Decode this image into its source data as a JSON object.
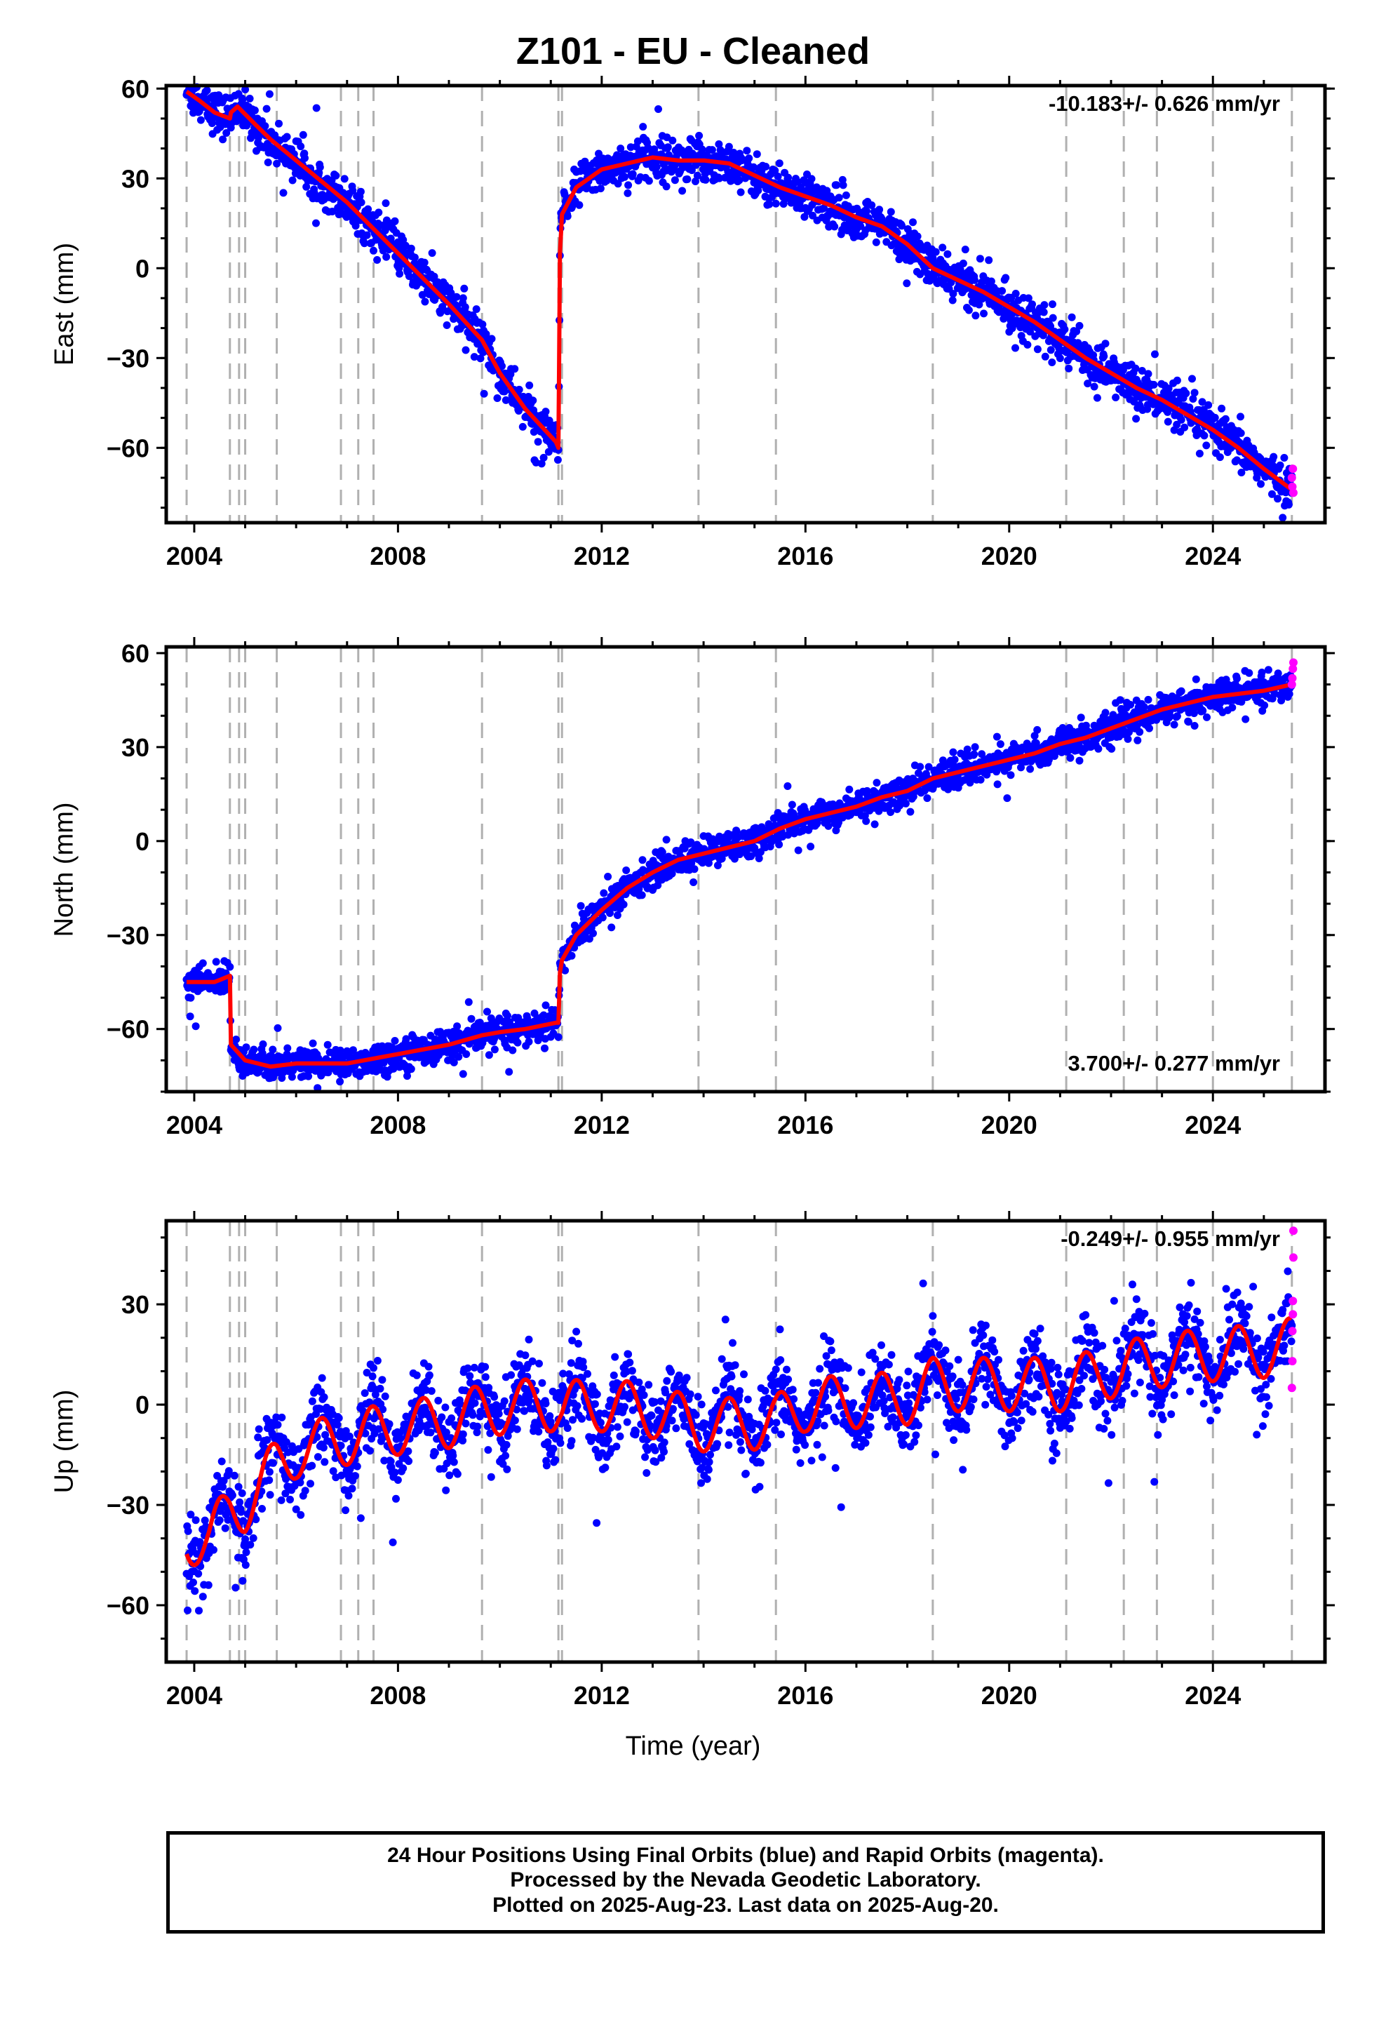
{
  "title": "Z101  - EU - Cleaned",
  "xlabel": "Time (year)",
  "footer": [
    "24 Hour Positions Using Final Orbits (blue) and Rapid Orbits (magenta).",
    "Processed by the Nevada Geodetic Laboratory.",
    "Plotted on 2025-Aug-23. Last data on 2025-Aug-20."
  ],
  "colors": {
    "final_orbits": "#0000ff",
    "rapid_orbits": "#ff00ff",
    "model": "#ff0000",
    "equipment_changes": "#b0b0b0"
  },
  "chart_data": [
    {
      "type": "scatter",
      "ylabel": "East (mm)",
      "rate_label": "-10.183+/- 0.626 mm/yr",
      "rate_position": "top-right",
      "xlim": [
        2003.45,
        2026.2
      ],
      "ylim": [
        -85,
        61
      ],
      "xticks": [
        2004,
        2008,
        2012,
        2016,
        2020,
        2024
      ],
      "xtick_labels": [
        "2004",
        "2008",
        "2012",
        "2016",
        "2020",
        "2024"
      ],
      "yticks": [
        -60,
        -30,
        0,
        30,
        60
      ],
      "ytick_labels": [
        "−60",
        "−30",
        "0",
        "30",
        "60"
      ],
      "equipment_change_years": [
        2003.85,
        2004.7,
        2004.88,
        2005.0,
        2005.62,
        2006.88,
        2007.22,
        2007.52,
        2009.65,
        2011.15,
        2011.22,
        2013.9,
        2015.42,
        2018.5,
        2021.12,
        2022.25,
        2022.9,
        2024.0,
        2025.55
      ],
      "model_trend": [
        [
          2003.85,
          59
        ],
        [
          2004.1,
          56
        ],
        [
          2004.4,
          52
        ],
        [
          2004.7,
          50
        ],
        [
          2004.72,
          52
        ],
        [
          2004.85,
          54
        ],
        [
          2005.2,
          48
        ],
        [
          2005.5,
          43
        ],
        [
          2006,
          36
        ],
        [
          2007,
          22
        ],
        [
          2008,
          5
        ],
        [
          2009,
          -12
        ],
        [
          2009.65,
          -24
        ],
        [
          2010,
          -35
        ],
        [
          2010.5,
          -47
        ],
        [
          2011.1,
          -58
        ],
        [
          2011.15,
          -60
        ],
        [
          2011.18,
          5
        ],
        [
          2011.22,
          18
        ],
        [
          2011.5,
          27
        ],
        [
          2012,
          33
        ],
        [
          2012.5,
          35
        ],
        [
          2013,
          37
        ],
        [
          2013.5,
          36
        ],
        [
          2014,
          36
        ],
        [
          2014.5,
          35
        ],
        [
          2015,
          31
        ],
        [
          2015.5,
          27
        ],
        [
          2016,
          24
        ],
        [
          2016.5,
          21
        ],
        [
          2017,
          17
        ],
        [
          2017.5,
          14
        ],
        [
          2018,
          8
        ],
        [
          2018.5,
          0
        ],
        [
          2019,
          -4
        ],
        [
          2019.5,
          -8
        ],
        [
          2020,
          -13
        ],
        [
          2020.5,
          -18
        ],
        [
          2021,
          -24
        ],
        [
          2021.5,
          -30
        ],
        [
          2022,
          -35
        ],
        [
          2022.5,
          -40
        ],
        [
          2023,
          -44
        ],
        [
          2023.5,
          -49
        ],
        [
          2024,
          -54
        ],
        [
          2024.5,
          -60
        ],
        [
          2025,
          -67
        ],
        [
          2025.55,
          -74
        ]
      ],
      "scatter_noise_mm": 3.5,
      "rapid_points": [
        [
          2025.55,
          -70
        ],
        [
          2025.56,
          -73
        ],
        [
          2025.57,
          -67
        ],
        [
          2025.58,
          -75
        ]
      ]
    },
    {
      "type": "scatter",
      "ylabel": "North (mm)",
      "rate_label": "3.700+/- 0.277 mm/yr",
      "rate_position": "bottom-right",
      "xlim": [
        2003.45,
        2026.2
      ],
      "ylim": [
        -80,
        62
      ],
      "xticks": [
        2004,
        2008,
        2012,
        2016,
        2020,
        2024
      ],
      "xtick_labels": [
        "2004",
        "2008",
        "2012",
        "2016",
        "2020",
        "2024"
      ],
      "yticks": [
        -60,
        -30,
        0,
        30,
        60
      ],
      "ytick_labels": [
        "−60",
        "−30",
        "0",
        "30",
        "60"
      ],
      "equipment_change_years": [
        2003.85,
        2004.7,
        2004.88,
        2005.0,
        2005.62,
        2006.88,
        2007.22,
        2007.52,
        2009.65,
        2011.15,
        2011.22,
        2013.9,
        2015.42,
        2018.5,
        2021.12,
        2022.25,
        2022.9,
        2024.0,
        2025.55
      ],
      "model_trend": [
        [
          2003.85,
          -45
        ],
        [
          2004.1,
          -45
        ],
        [
          2004.4,
          -45
        ],
        [
          2004.7,
          -43
        ],
        [
          2004.72,
          -65
        ],
        [
          2005,
          -70
        ],
        [
          2005.5,
          -72
        ],
        [
          2006,
          -71
        ],
        [
          2007,
          -71
        ],
        [
          2008,
          -68
        ],
        [
          2009,
          -65
        ],
        [
          2009.65,
          -62
        ],
        [
          2010,
          -61
        ],
        [
          2010.5,
          -60
        ],
        [
          2011.1,
          -58
        ],
        [
          2011.15,
          -58
        ],
        [
          2011.18,
          -42
        ],
        [
          2011.22,
          -38
        ],
        [
          2011.5,
          -30
        ],
        [
          2012,
          -22
        ],
        [
          2012.5,
          -15
        ],
        [
          2013,
          -10
        ],
        [
          2013.5,
          -6
        ],
        [
          2014,
          -4
        ],
        [
          2014.5,
          -2
        ],
        [
          2015,
          0
        ],
        [
          2015.5,
          4
        ],
        [
          2016,
          7
        ],
        [
          2016.5,
          9
        ],
        [
          2017,
          11
        ],
        [
          2017.5,
          14
        ],
        [
          2018,
          16
        ],
        [
          2018.5,
          20
        ],
        [
          2019,
          22
        ],
        [
          2019.5,
          24
        ],
        [
          2020,
          26
        ],
        [
          2020.5,
          28
        ],
        [
          2021,
          31
        ],
        [
          2021.5,
          33
        ],
        [
          2022,
          36
        ],
        [
          2022.5,
          39
        ],
        [
          2023,
          42
        ],
        [
          2023.5,
          44
        ],
        [
          2024,
          46
        ],
        [
          2024.5,
          47
        ],
        [
          2025,
          48
        ],
        [
          2025.55,
          50
        ]
      ],
      "scatter_noise_mm": 2.5,
      "rapid_points": [
        [
          2025.55,
          50
        ],
        [
          2025.56,
          52
        ],
        [
          2025.57,
          55
        ],
        [
          2025.58,
          57
        ]
      ]
    },
    {
      "type": "scatter",
      "ylabel": "Up (mm)",
      "rate_label": "-0.249+/- 0.955 mm/yr",
      "rate_position": "top-right",
      "xlim": [
        2003.45,
        2026.2
      ],
      "ylim": [
        -77,
        55
      ],
      "xticks": [
        2004,
        2008,
        2012,
        2016,
        2020,
        2024
      ],
      "xtick_labels": [
        "2004",
        "2008",
        "2012",
        "2016",
        "2020",
        "2024"
      ],
      "yticks": [
        -60,
        -30,
        0,
        30
      ],
      "ytick_labels": [
        "−60",
        "−30",
        "0",
        "30"
      ],
      "equipment_change_years": [
        2003.85,
        2004.7,
        2004.88,
        2005.0,
        2005.62,
        2006.88,
        2007.22,
        2007.52,
        2009.65,
        2011.15,
        2011.22,
        2013.9,
        2015.42,
        2018.5,
        2021.12,
        2022.25,
        2022.9,
        2024.0,
        2025.55
      ],
      "model_trend": [
        [
          2003.85,
          -40
        ],
        [
          2004.3,
          -40
        ],
        [
          2004.7,
          -32
        ],
        [
          2005,
          -30
        ],
        [
          2005.62,
          -18
        ],
        [
          2006,
          -14
        ],
        [
          2007,
          -10
        ],
        [
          2008,
          -7
        ],
        [
          2009,
          -5
        ],
        [
          2009.65,
          -2
        ],
        [
          2010,
          -1
        ],
        [
          2011,
          0
        ],
        [
          2011.15,
          0
        ],
        [
          2011.22,
          -1
        ],
        [
          2012,
          0
        ],
        [
          2013,
          -2
        ],
        [
          2013.9,
          -6
        ],
        [
          2014.5,
          -6
        ],
        [
          2015.42,
          -5
        ],
        [
          2016,
          0
        ],
        [
          2017,
          1
        ],
        [
          2018,
          2
        ],
        [
          2018.5,
          6
        ],
        [
          2019,
          6
        ],
        [
          2020,
          6
        ],
        [
          2021.12,
          6
        ],
        [
          2022.25,
          11
        ],
        [
          2022.9,
          13
        ],
        [
          2024,
          15
        ],
        [
          2025,
          16
        ],
        [
          2025.55,
          18
        ]
      ],
      "seasonal_amplitude_mm": 8,
      "scatter_noise_mm": 6,
      "rapid_points": [
        [
          2025.55,
          5
        ],
        [
          2025.56,
          13
        ],
        [
          2025.56,
          22
        ],
        [
          2025.57,
          27
        ],
        [
          2025.57,
          31
        ],
        [
          2025.58,
          44
        ],
        [
          2025.58,
          52
        ]
      ]
    }
  ]
}
